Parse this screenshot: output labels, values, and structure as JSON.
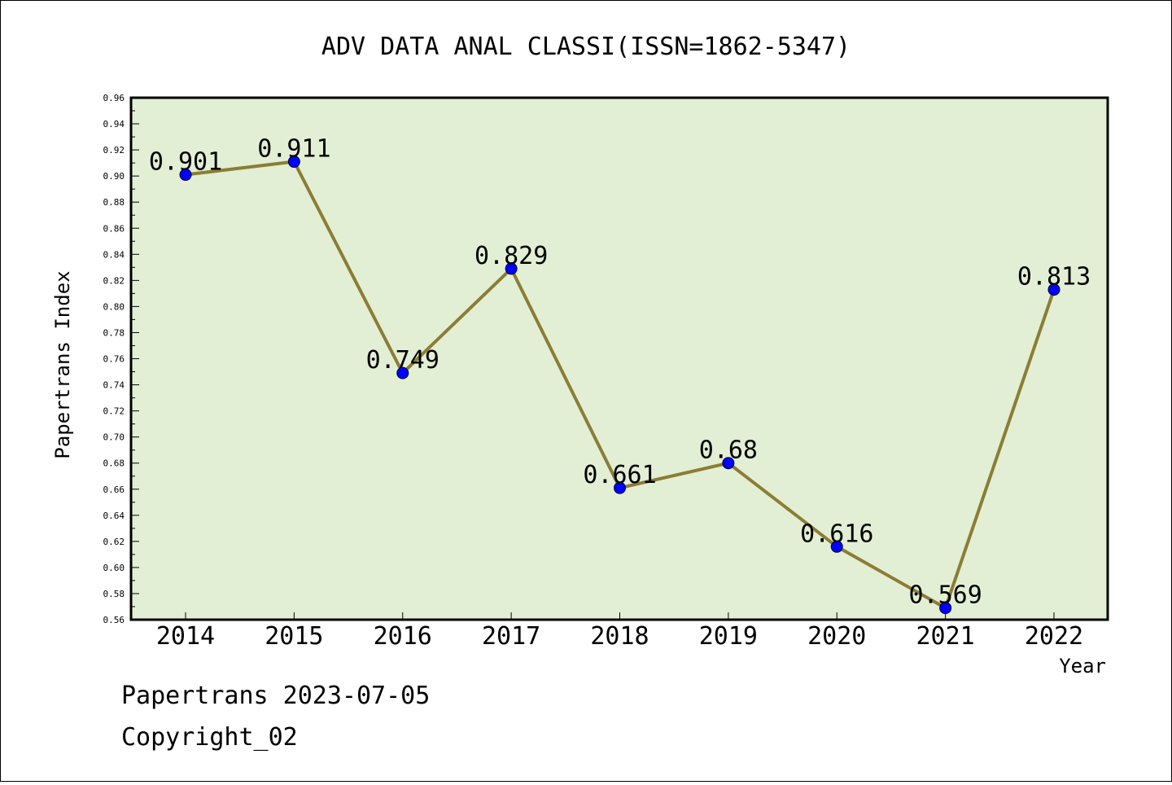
{
  "chart_data": {
    "type": "line",
    "title": "ADV DATA ANAL CLASSI(ISSN=1862-5347)",
    "xlabel": "Year",
    "ylabel": "Papertrans Index",
    "categories": [
      "2014",
      "2015",
      "2016",
      "2017",
      "2018",
      "2019",
      "2020",
      "2021",
      "2022"
    ],
    "values": [
      0.901,
      0.911,
      0.749,
      0.829,
      0.661,
      0.68,
      0.616,
      0.569,
      0.813
    ],
    "data_labels": [
      "0.901",
      "0.911",
      "0.749",
      "0.829",
      "0.661",
      "0.68",
      "0.616",
      "0.569",
      "0.813"
    ],
    "ylim": [
      0.56,
      0.96
    ],
    "yticks": [
      "0.56",
      "0.58",
      "0.60",
      "0.62",
      "0.64",
      "0.66",
      "0.68",
      "0.70",
      "0.72",
      "0.74",
      "0.76",
      "0.78",
      "0.80",
      "0.82",
      "0.84",
      "0.86",
      "0.88",
      "0.90",
      "0.92",
      "0.94",
      "0.96"
    ],
    "grid": false,
    "colors": {
      "line": "#8B7D35",
      "marker": "#0000FF",
      "plot_background": "#E2EFD4"
    }
  },
  "footer": {
    "date_line": "Papertrans 2023-07-05",
    "copyright": "Copyright_02"
  }
}
